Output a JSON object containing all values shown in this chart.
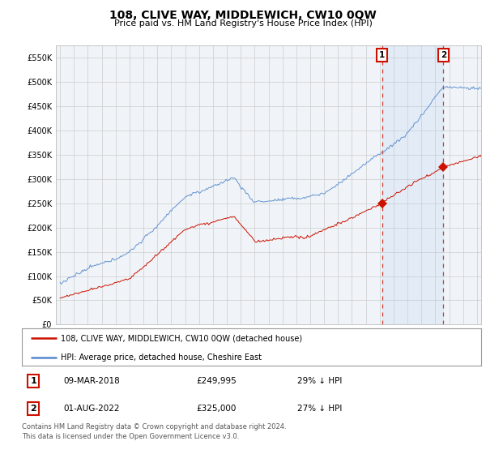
{
  "title": "108, CLIVE WAY, MIDDLEWICH, CW10 0QW",
  "subtitle": "Price paid vs. HM Land Registry's House Price Index (HPI)",
  "ylabel_ticks": [
    "£0",
    "£50K",
    "£100K",
    "£150K",
    "£200K",
    "£250K",
    "£300K",
    "£350K",
    "£400K",
    "£450K",
    "£500K",
    "£550K"
  ],
  "ylim": [
    0,
    575000
  ],
  "xlim_start": 1994.7,
  "xlim_end": 2025.3,
  "hpi_color": "#5588cc",
  "price_color": "#cc1100",
  "marker1_year": 2018.17,
  "marker2_year": 2022.58,
  "marker1_price": 249995,
  "marker2_price": 325000,
  "legend_label_red": "108, CLIVE WAY, MIDDLEWICH, CW10 0QW (detached house)",
  "legend_label_blue": "HPI: Average price, detached house, Cheshire East",
  "table_rows": [
    {
      "num": "1",
      "date": "09-MAR-2018",
      "price": "£249,995",
      "note": "29% ↓ HPI"
    },
    {
      "num": "2",
      "date": "01-AUG-2022",
      "price": "£325,000",
      "note": "27% ↓ HPI"
    }
  ],
  "footer": "Contains HM Land Registry data © Crown copyright and database right 2024.\nThis data is licensed under the Open Government Licence v3.0.",
  "background_color": "#ffffff",
  "plot_bg_color": "#f0f4f8"
}
